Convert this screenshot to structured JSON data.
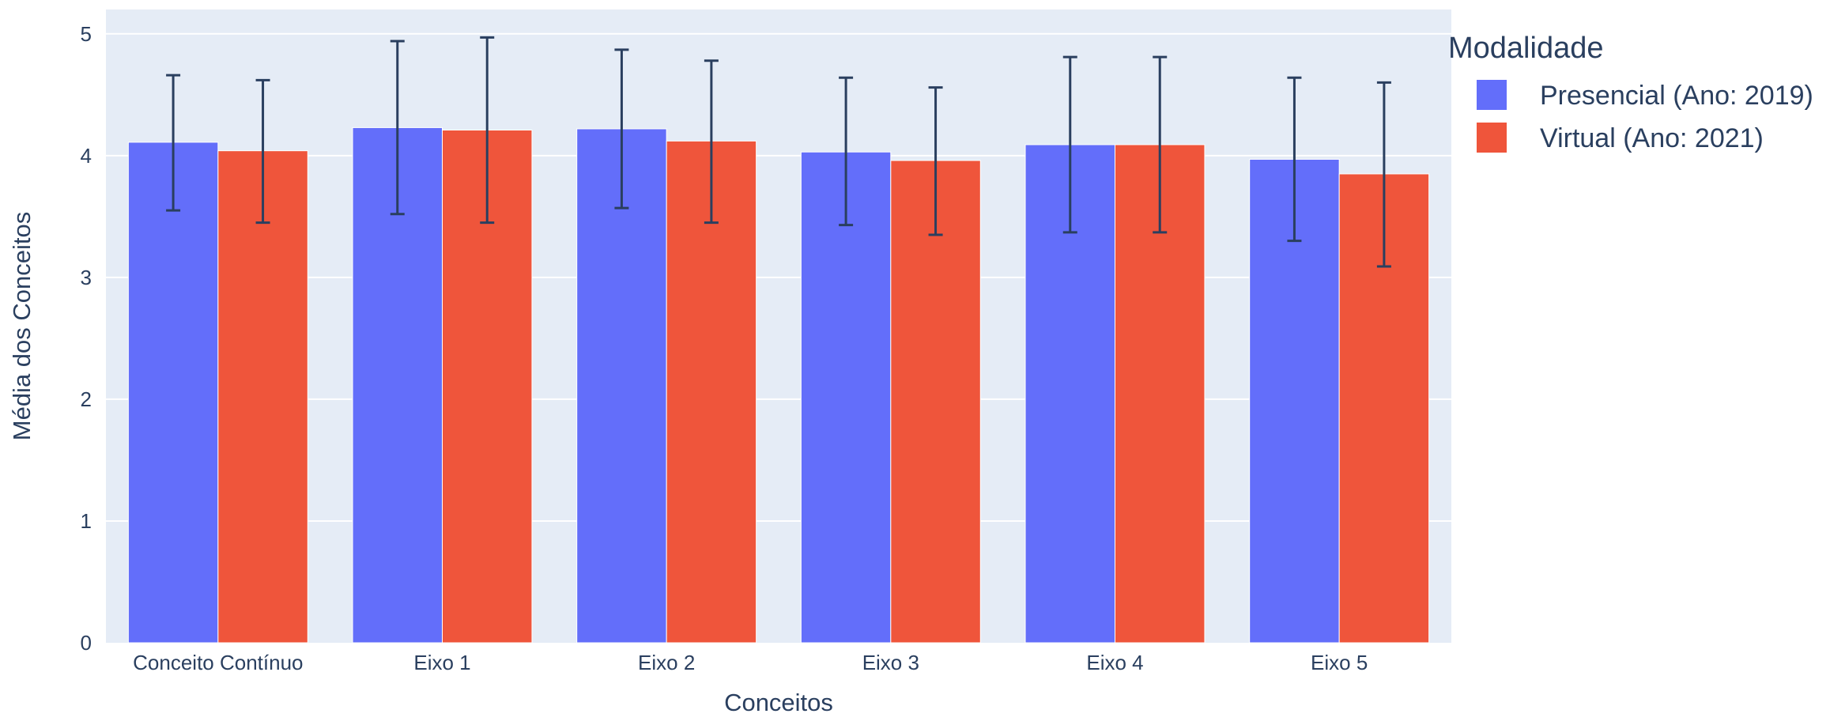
{
  "chart_data": {
    "type": "bar",
    "title": "",
    "xlabel": "Conceitos",
    "ylabel": "Média dos Conceitos",
    "ylim": [
      0,
      5.2
    ],
    "yticks": [
      0,
      1,
      2,
      3,
      4,
      5
    ],
    "grid": true,
    "barmode": "group",
    "categories": [
      "Conceito Contínuo",
      "Eixo 1",
      "Eixo 2",
      "Eixo 3",
      "Eixo 4",
      "Eixo 5"
    ],
    "series": [
      {
        "name": "Presencial (Ano: 2019)",
        "color": "#636efa",
        "values": [
          4.11,
          4.23,
          4.22,
          4.03,
          4.09,
          3.97
        ],
        "error_lower": [
          3.55,
          3.52,
          3.57,
          3.43,
          3.37,
          3.3
        ],
        "error_upper": [
          4.66,
          4.94,
          4.87,
          4.64,
          4.81,
          4.64
        ]
      },
      {
        "name": "Virtual (Ano: 2021)",
        "color": "#ef553b",
        "values": [
          4.04,
          4.21,
          4.12,
          3.96,
          4.09,
          3.85
        ],
        "error_lower": [
          3.45,
          3.45,
          3.45,
          3.35,
          3.37,
          3.09
        ],
        "error_upper": [
          4.62,
          4.97,
          4.78,
          4.56,
          4.81,
          4.6
        ]
      }
    ],
    "legend": {
      "title": "Modalidade",
      "position": "right"
    },
    "colors": {
      "plot_background": "#e5ecf6",
      "gridline": "#ffffff",
      "text": "#2a3f5f",
      "error_bar": "#2a3f5f"
    }
  }
}
